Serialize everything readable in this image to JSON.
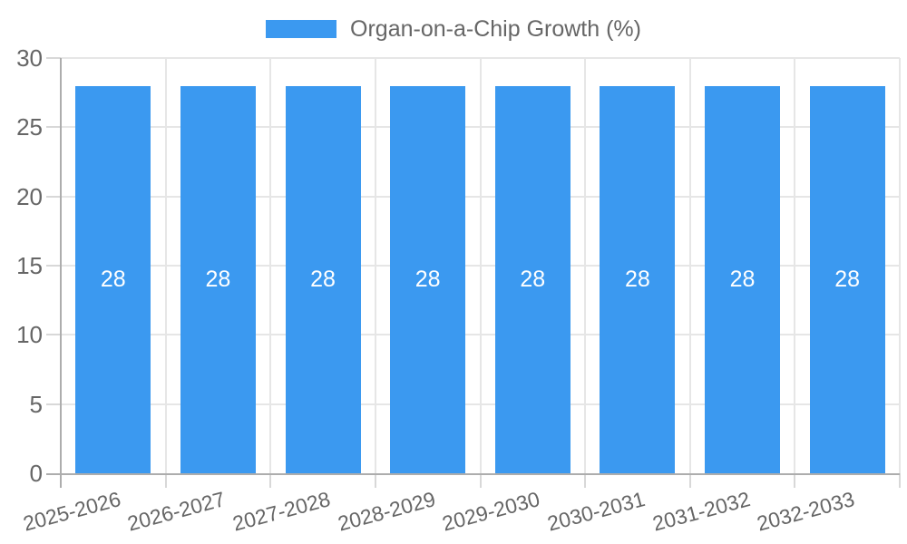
{
  "legend": {
    "label": "Organ-on-a-Chip Growth (%)"
  },
  "colors": {
    "bar": "#3B99F0",
    "grid": "#E6E6E6",
    "tick": "#D8D8D8",
    "axis": "#ADADAD",
    "text": "#666666",
    "bar_label": "#FFFFFF",
    "background": "#FFFFFF"
  },
  "chart_data": {
    "type": "bar",
    "title": "",
    "series_name": "Organ-on-a-Chip Growth (%)",
    "categories": [
      "2025-2026",
      "2026-2027",
      "2027-2028",
      "2028-2029",
      "2029-2030",
      "2030-2031",
      "2031-2032",
      "2032-2033"
    ],
    "values": [
      28,
      28,
      28,
      28,
      28,
      28,
      28,
      28
    ],
    "bar_value_labels": [
      "28",
      "28",
      "28",
      "28",
      "28",
      "28",
      "28",
      "28"
    ],
    "xlabel": "",
    "ylabel": "",
    "ylim": [
      0,
      30
    ],
    "yticks": [
      0,
      5,
      10,
      15,
      20,
      25,
      30
    ],
    "grid": true,
    "legend_position": "top",
    "x_label_rotation_deg": -15
  }
}
